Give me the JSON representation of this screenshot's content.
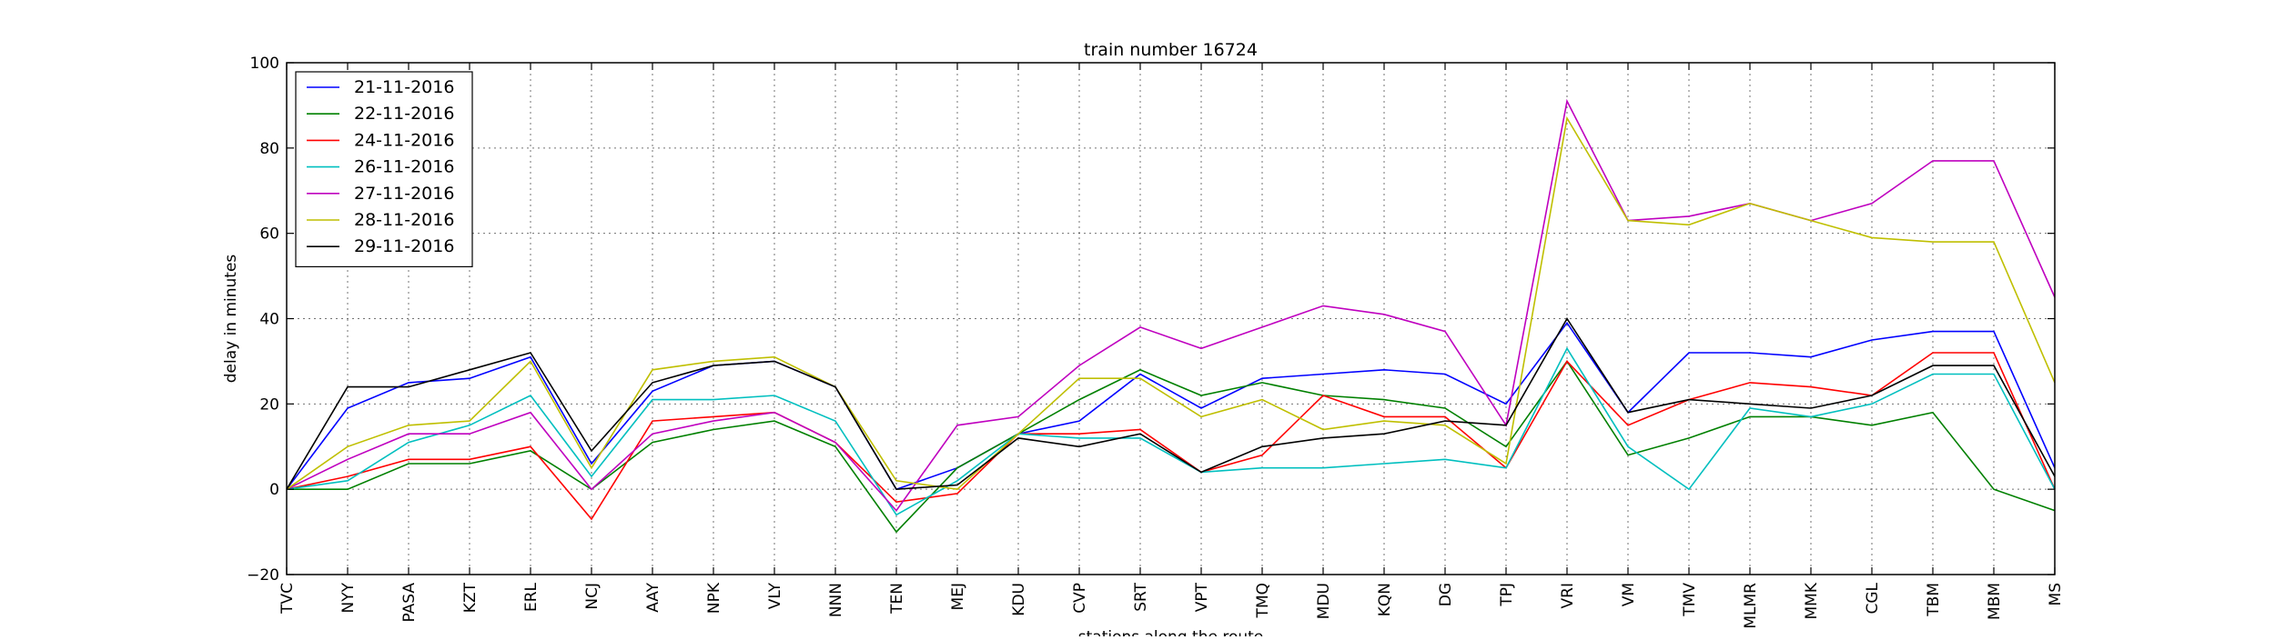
{
  "chart_data": {
    "type": "line",
    "title": "train number 16724",
    "xlabel": "stations along the route",
    "ylabel": "delay in minutes",
    "ylim": [
      -20,
      100
    ],
    "yticks": [
      -20,
      0,
      20,
      40,
      60,
      80,
      100
    ],
    "grid": true,
    "legend_position": "top-left",
    "categories": [
      "TVC",
      "NYY",
      "PASA",
      "KZT",
      "ERL",
      "NCJ",
      "AAY",
      "NPK",
      "VLY",
      "NNN",
      "TEN",
      "MEJ",
      "KDU",
      "CVP",
      "SRT",
      "VPT",
      "TMQ",
      "MDU",
      "KQN",
      "DG",
      "TPJ",
      "VRI",
      "VM",
      "TMV",
      "MLMR",
      "MMK",
      "CGL",
      "TBM",
      "MBM",
      "MS"
    ],
    "series": [
      {
        "name": "21-11-2016",
        "color": "#0000ff",
        "values": [
          0,
          19,
          25,
          26,
          31,
          6,
          23,
          29,
          30,
          24,
          0,
          5,
          13,
          16,
          27,
          19,
          26,
          27,
          28,
          27,
          20,
          39,
          18,
          32,
          32,
          31,
          35,
          37,
          37,
          5
        ]
      },
      {
        "name": "22-11-2016",
        "color": "#008000",
        "values": [
          0,
          0,
          6,
          6,
          9,
          0,
          11,
          14,
          16,
          10,
          -10,
          5,
          13,
          21,
          28,
          22,
          25,
          22,
          21,
          19,
          10,
          30,
          8,
          12,
          17,
          17,
          15,
          18,
          0,
          -5
        ]
      },
      {
        "name": "24-11-2016",
        "color": "#ff0000",
        "values": [
          0,
          3,
          7,
          7,
          10,
          -7,
          16,
          17,
          18,
          11,
          -3,
          -1,
          13,
          13,
          14,
          4,
          8,
          22,
          17,
          17,
          5,
          30,
          15,
          21,
          25,
          24,
          22,
          32,
          32,
          0
        ]
      },
      {
        "name": "26-11-2016",
        "color": "#00bfbf",
        "values": [
          0,
          2,
          11,
          15,
          22,
          3,
          21,
          21,
          22,
          16,
          -6,
          2,
          13,
          12,
          12,
          4,
          5,
          5,
          6,
          7,
          5,
          33,
          10,
          0,
          19,
          17,
          20,
          27,
          27,
          0
        ]
      },
      {
        "name": "27-11-2016",
        "color": "#bf00bf",
        "values": [
          0,
          7,
          13,
          13,
          18,
          0,
          13,
          16,
          18,
          11,
          -5,
          15,
          17,
          29,
          38,
          33,
          38,
          43,
          41,
          37,
          15,
          91,
          63,
          64,
          67,
          63,
          67,
          77,
          77,
          45
        ]
      },
      {
        "name": "28-11-2016",
        "color": "#bfbf00",
        "values": [
          0,
          10,
          15,
          16,
          30,
          5,
          28,
          30,
          31,
          24,
          2,
          0,
          13,
          26,
          26,
          17,
          21,
          14,
          16,
          15,
          6,
          87,
          63,
          62,
          67,
          63,
          59,
          58,
          58,
          25
        ]
      },
      {
        "name": "29-11-2016",
        "color": "#000000",
        "values": [
          0,
          24,
          24,
          28,
          32,
          9,
          25,
          29,
          30,
          24,
          0,
          1,
          12,
          10,
          13,
          4,
          10,
          12,
          13,
          16,
          15,
          40,
          18,
          21,
          20,
          19,
          22,
          29,
          29,
          3
        ]
      }
    ]
  }
}
